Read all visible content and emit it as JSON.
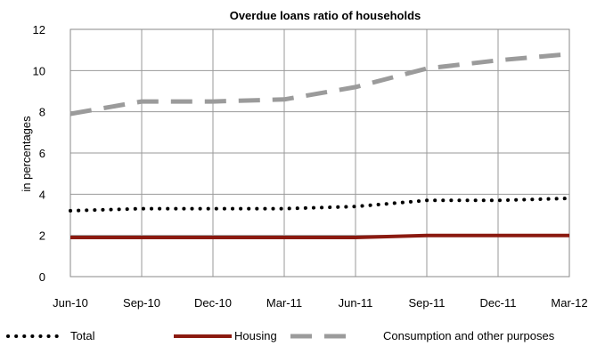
{
  "chart_data": {
    "type": "line",
    "title": "Overdue loans ratio of households",
    "xlabel": "",
    "ylabel": "in percentages",
    "categories": [
      "Jun-10",
      "Sep-10",
      "Dec-10",
      "Mar-11",
      "Jun-11",
      "Sep-11",
      "Dec-11",
      "Mar-12"
    ],
    "ylim": [
      0,
      12
    ],
    "yticks": [
      "0",
      "2",
      "4",
      "6",
      "8",
      "10",
      "12"
    ],
    "grid": true,
    "legend_position": "bottom",
    "series": [
      {
        "name": "Total",
        "values": [
          3.2,
          3.3,
          3.3,
          3.3,
          3.4,
          3.7,
          3.7,
          3.8
        ],
        "color": "#000000",
        "style": "dotted"
      },
      {
        "name": "Housing",
        "values": [
          1.9,
          1.9,
          1.9,
          1.9,
          1.9,
          2.0,
          2.0,
          2.0
        ],
        "color": "#8b1a10",
        "style": "solid"
      },
      {
        "name": "Consumption and other purposes",
        "values": [
          7.9,
          8.5,
          8.5,
          8.6,
          9.2,
          10.1,
          10.5,
          10.8
        ],
        "color": "#9b9b9b",
        "style": "dashed"
      }
    ]
  }
}
